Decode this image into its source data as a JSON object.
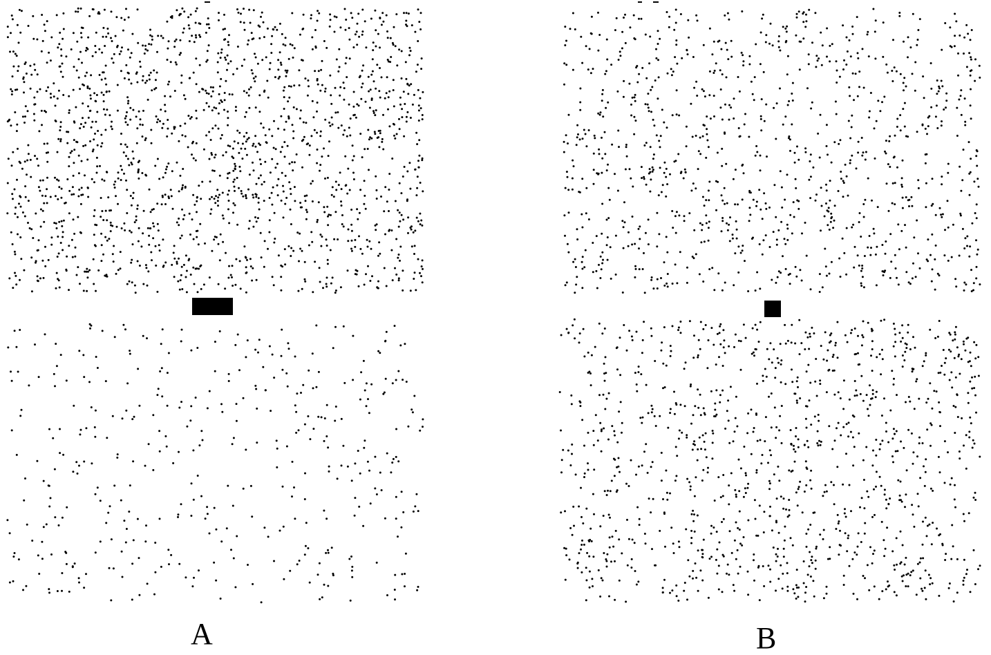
{
  "figure": {
    "background_color": "#ffffff",
    "dot_color": "#000000",
    "panels": [
      {
        "label": "A",
        "top_field": {
          "density": "dense",
          "dot_count": 1700
        },
        "bottom_field": {
          "density": "sparse",
          "dot_count": 430
        },
        "fixation_marker": {
          "shape": "rectangle"
        }
      },
      {
        "label": "B",
        "top_field": {
          "density": "medium",
          "dot_count": 1050
        },
        "bottom_field": {
          "density": "medium",
          "dot_count": 1150
        },
        "fixation_marker": {
          "shape": "square"
        }
      }
    ]
  }
}
